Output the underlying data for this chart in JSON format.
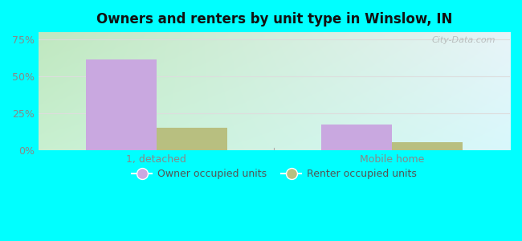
{
  "title": "Owners and renters by unit type in Winslow, IN",
  "categories": [
    "1, detached",
    "Mobile home"
  ],
  "owner_values": [
    0.615,
    0.175
  ],
  "renter_values": [
    0.155,
    0.055
  ],
  "owner_color": "#c9a8e0",
  "renter_color": "#b8bf80",
  "yticks": [
    0,
    0.25,
    0.5,
    0.75
  ],
  "ytick_labels": [
    "0%",
    "25%",
    "50%",
    "75%"
  ],
  "ylim": [
    0,
    0.8
  ],
  "bar_width": 0.3,
  "outer_bg": "#00ffff",
  "watermark": "City-Data.com",
  "legend_owner": "Owner occupied units",
  "legend_renter": "Renter occupied units",
  "bg_colors_lr": [
    "#c8e8d0",
    "#ddeef8"
  ],
  "bg_colors_tb": [
    "#e8f8e8",
    "#f8fcf8"
  ],
  "tick_color": "#888888",
  "grid_color": "#dddddd",
  "separator_color": "#aaaaaa"
}
